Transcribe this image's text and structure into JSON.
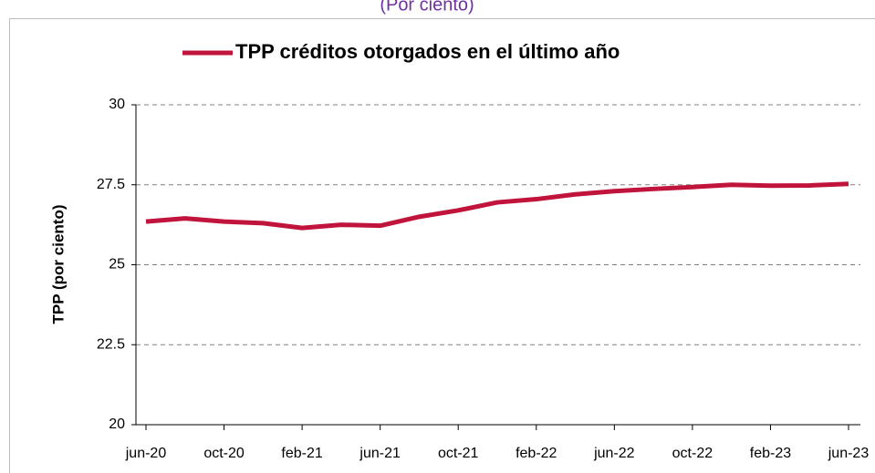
{
  "chart_data": {
    "type": "line",
    "subtitle": "(Por ciento)",
    "y_label": "TPP (por ciento)",
    "categories": [
      "jun-20",
      null,
      "oct-20",
      null,
      "feb-21",
      null,
      "jun-21",
      null,
      "oct-21",
      null,
      "feb-22",
      null,
      "jun-22",
      null,
      "oct-22",
      null,
      "feb-23",
      null,
      "jun-23"
    ],
    "series": [
      {
        "name": "TPP créditos otorgados en el último año",
        "color": "#c0143c",
        "values": [
          26.35,
          26.45,
          26.35,
          26.3,
          26.15,
          26.25,
          26.22,
          26.5,
          26.7,
          26.95,
          27.05,
          27.2,
          27.3,
          27.37,
          27.43,
          27.5,
          27.47,
          27.48,
          27.53
        ]
      }
    ],
    "ylim": [
      20,
      30
    ],
    "yticks": [
      20,
      {
        "value": 22.5,
        "label": "22.5"
      },
      25,
      {
        "value": 27.5,
        "label": "27.5"
      },
      30
    ],
    "grid": true,
    "legend": "top"
  }
}
